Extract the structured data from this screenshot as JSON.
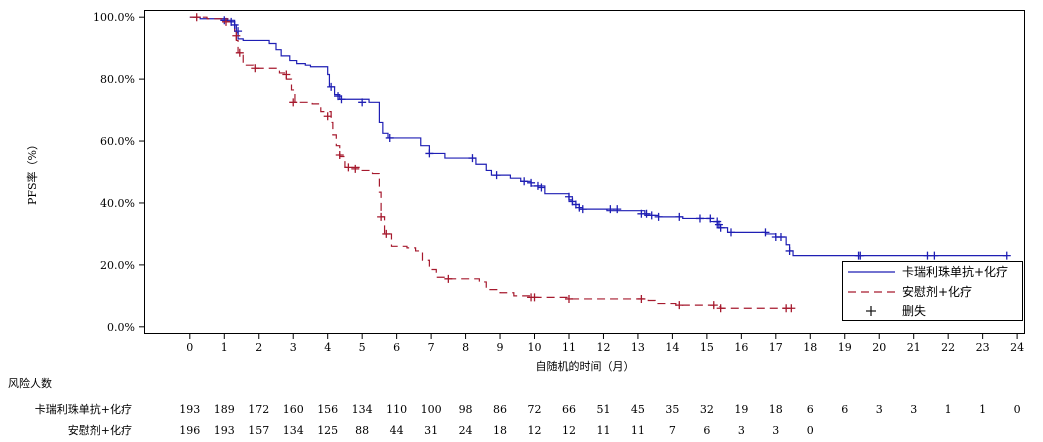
{
  "chart_data": {
    "type": "line",
    "subtype": "kaplan-meier",
    "ylabel": "PFS率（%）",
    "xlabel": "自随机的时间（月）",
    "xlim": [
      -1.3,
      24.2
    ],
    "ylim": [
      -2,
      102
    ],
    "x_ticks": [
      0,
      1,
      2,
      3,
      4,
      5,
      6,
      7,
      8,
      9,
      10,
      11,
      12,
      13,
      14,
      15,
      16,
      17,
      18,
      19,
      20,
      21,
      22,
      23,
      24
    ],
    "y_ticks": [
      {
        "value": 0,
        "label": "0.0%"
      },
      {
        "value": 20,
        "label": "20.0%"
      },
      {
        "value": 40,
        "label": "40.0%"
      },
      {
        "value": 60,
        "label": "60.0%"
      },
      {
        "value": 80,
        "label": "80.0%"
      },
      {
        "value": 100,
        "label": "100.0%"
      }
    ],
    "legend_position": "bottom-right",
    "censor_legend_label": "删失",
    "censor_color": "#1a1a1a",
    "series": [
      {
        "name": "卡瑞利珠单抗+化疗",
        "color": "#1f1fb4",
        "dash": "solid",
        "steps": [
          [
            0,
            100
          ],
          [
            0.3,
            99.5
          ],
          [
            1.1,
            99
          ],
          [
            1.3,
            97.5
          ],
          [
            1.35,
            95
          ],
          [
            1.4,
            93
          ],
          [
            1.55,
            92.5
          ],
          [
            2.3,
            91.5
          ],
          [
            2.5,
            89.5
          ],
          [
            2.65,
            87.5
          ],
          [
            2.9,
            86
          ],
          [
            3.1,
            85
          ],
          [
            3.35,
            84.5
          ],
          [
            3.5,
            84.0
          ],
          [
            4.0,
            81.5
          ],
          [
            4.05,
            77.5
          ],
          [
            4.2,
            75
          ],
          [
            4.35,
            73.5
          ],
          [
            5.2,
            72.5
          ],
          [
            5.5,
            69.5
          ],
          [
            5.5,
            66.0
          ],
          [
            5.6,
            62.5
          ],
          [
            5.75,
            61.0
          ],
          [
            6.7,
            58.5
          ],
          [
            6.95,
            56.0
          ],
          [
            7.4,
            54.5
          ],
          [
            8.3,
            52.5
          ],
          [
            8.6,
            50.5
          ],
          [
            8.75,
            49.0
          ],
          [
            9.3,
            48.0
          ],
          [
            9.6,
            47.0
          ],
          [
            9.9,
            45.5
          ],
          [
            10.3,
            43.0
          ],
          [
            11.0,
            41.0
          ],
          [
            11.1,
            39.5
          ],
          [
            11.3,
            38.0
          ],
          [
            12.1,
            37.5
          ],
          [
            13.2,
            36.0
          ],
          [
            13.6,
            35.5
          ],
          [
            14.3,
            35.0
          ],
          [
            15.1,
            34.0
          ],
          [
            15.3,
            32.0
          ],
          [
            15.6,
            30.5
          ],
          [
            16.7,
            30.0
          ],
          [
            17.0,
            29.0
          ],
          [
            17.3,
            26.5
          ],
          [
            17.4,
            24.5
          ],
          [
            17.5,
            23.0
          ],
          [
            23.7,
            23.0
          ]
        ],
        "censors": [
          [
            1.0,
            99
          ],
          [
            1.2,
            98.5
          ],
          [
            1.3,
            97.5
          ],
          [
            1.4,
            95.5
          ],
          [
            4.1,
            77.5
          ],
          [
            4.3,
            74.5
          ],
          [
            4.4,
            73.5
          ],
          [
            5.0,
            72.5
          ],
          [
            5.8,
            61.0
          ],
          [
            6.95,
            56.0
          ],
          [
            8.2,
            54.5
          ],
          [
            8.9,
            49.0
          ],
          [
            9.7,
            47.0
          ],
          [
            9.9,
            46.5
          ],
          [
            10.1,
            45.5
          ],
          [
            10.2,
            45.0
          ],
          [
            11.0,
            42.0
          ],
          [
            11.1,
            40.5
          ],
          [
            11.2,
            39.5
          ],
          [
            11.3,
            38.5
          ],
          [
            11.4,
            38.0
          ],
          [
            12.2,
            38.0
          ],
          [
            12.4,
            38.0
          ],
          [
            13.1,
            36.5
          ],
          [
            13.25,
            36.5
          ],
          [
            13.4,
            36.0
          ],
          [
            13.6,
            35.5
          ],
          [
            14.2,
            35.5
          ],
          [
            14.8,
            35.0
          ],
          [
            15.1,
            35.0
          ],
          [
            15.3,
            34.0
          ],
          [
            15.35,
            33.0
          ],
          [
            15.4,
            32.0
          ],
          [
            15.7,
            30.5
          ],
          [
            16.7,
            30.5
          ],
          [
            17.0,
            29.0
          ],
          [
            17.15,
            29.0
          ],
          [
            17.4,
            24.5
          ],
          [
            19.4,
            23.0
          ],
          [
            19.45,
            23.0
          ],
          [
            21.4,
            23.0
          ],
          [
            21.6,
            23.0
          ],
          [
            23.7,
            23.0
          ]
        ]
      },
      {
        "name": "安慰剂+化疗",
        "color": "#a61a2e",
        "dash": "dashed",
        "steps": [
          [
            0,
            100
          ],
          [
            0.5,
            99.5
          ],
          [
            1.1,
            98.5
          ],
          [
            1.3,
            95.5
          ],
          [
            1.35,
            92.5
          ],
          [
            1.4,
            88.5
          ],
          [
            1.55,
            84.5
          ],
          [
            1.85,
            83.5
          ],
          [
            2.6,
            82.0
          ],
          [
            2.8,
            80.0
          ],
          [
            2.95,
            76.5
          ],
          [
            3.05,
            72.5
          ],
          [
            3.55,
            72.0
          ],
          [
            3.8,
            69.5
          ],
          [
            4.1,
            66.0
          ],
          [
            4.15,
            62.0
          ],
          [
            4.25,
            58.5
          ],
          [
            4.35,
            55.0
          ],
          [
            4.5,
            51.5
          ],
          [
            5.0,
            50.5
          ],
          [
            5.3,
            49.5
          ],
          [
            5.5,
            43.5
          ],
          [
            5.55,
            35.5
          ],
          [
            5.65,
            30.0
          ],
          [
            5.85,
            26.0
          ],
          [
            6.3,
            25.5
          ],
          [
            6.55,
            24.5
          ],
          [
            6.75,
            21.5
          ],
          [
            6.95,
            18.5
          ],
          [
            7.15,
            16.0
          ],
          [
            7.5,
            15.5
          ],
          [
            8.4,
            14.5
          ],
          [
            8.6,
            12.0
          ],
          [
            9.0,
            11.0
          ],
          [
            9.4,
            10.0
          ],
          [
            9.85,
            9.5
          ],
          [
            11.0,
            9.0
          ],
          [
            13.3,
            8.5
          ],
          [
            13.5,
            7.5
          ],
          [
            14.1,
            7.0
          ],
          [
            15.2,
            6.5
          ],
          [
            15.4,
            6.0
          ],
          [
            17.35,
            6.0
          ]
        ],
        "censors": [
          [
            0.2,
            100
          ],
          [
            1.05,
            98.5
          ],
          [
            1.35,
            94
          ],
          [
            1.45,
            88.5
          ],
          [
            1.9,
            83.5
          ],
          [
            2.8,
            81.5
          ],
          [
            3.0,
            72.5
          ],
          [
            4.0,
            68.0
          ],
          [
            4.35,
            55.5
          ],
          [
            4.6,
            51.5
          ],
          [
            4.8,
            51.0
          ],
          [
            5.55,
            35.5
          ],
          [
            5.7,
            30.0
          ],
          [
            7.5,
            15.5
          ],
          [
            9.9,
            9.5
          ],
          [
            10.0,
            9.5
          ],
          [
            11.0,
            9.0
          ],
          [
            13.1,
            9.0
          ],
          [
            14.2,
            7.0
          ],
          [
            15.2,
            7.0
          ],
          [
            15.4,
            6.0
          ],
          [
            17.3,
            6.0
          ],
          [
            17.45,
            6.0
          ]
        ]
      }
    ]
  },
  "risk_table": {
    "title": "风险人数",
    "columns": [
      0,
      1,
      2,
      3,
      4,
      5,
      6,
      7,
      8,
      9,
      10,
      11,
      12,
      13,
      14,
      15,
      16,
      17,
      18,
      19,
      20,
      21,
      22,
      23,
      24
    ],
    "rows": [
      {
        "label": "卡瑞利珠单抗+化疗",
        "values": [
          "193",
          "189",
          "172",
          "160",
          "156",
          "134",
          "110",
          "100",
          "98",
          "86",
          "72",
          "66",
          "51",
          "45",
          "35",
          "32",
          "19",
          "18",
          "6",
          "6",
          "3",
          "3",
          "1",
          "1",
          "0"
        ]
      },
      {
        "label": "安慰剂+化疗",
        "values": [
          "196",
          "193",
          "157",
          "134",
          "125",
          "88",
          "44",
          "31",
          "24",
          "18",
          "12",
          "12",
          "11",
          "11",
          "7",
          "6",
          "3",
          "3",
          "0",
          "",
          "",
          "",
          "",
          "",
          ""
        ]
      }
    ]
  }
}
